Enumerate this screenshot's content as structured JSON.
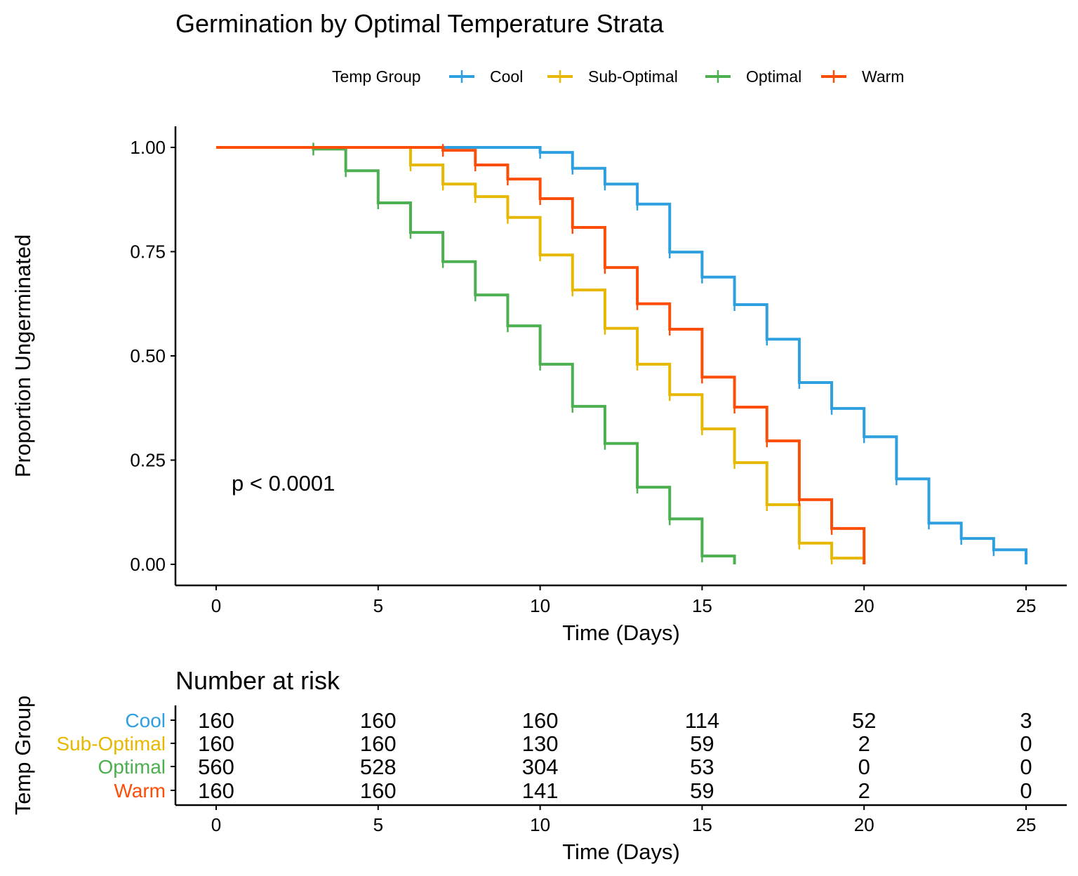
{
  "chart_data": {
    "type": "line",
    "subtype": "kaplan-meier step",
    "title": "Germination by Optimal Temperature Strata",
    "xlabel": "Time (Days)",
    "ylabel": "Proportion Ungerminated",
    "xlim": [
      0,
      25
    ],
    "ylim": [
      0,
      1
    ],
    "xticks": [
      "0",
      "5",
      "10",
      "15",
      "20",
      "25"
    ],
    "yticks": [
      "0.00",
      "0.25",
      "0.50",
      "0.75",
      "1.00"
    ],
    "grid": false,
    "legend": {
      "title": "Temp Group",
      "placement": "top"
    },
    "annotation": "p < 0.0001",
    "series": [
      {
        "name": "Cool",
        "color": "#2E9FDF",
        "x": [
          0,
          10,
          11,
          12,
          13,
          14,
          15,
          16,
          17,
          18,
          19,
          20,
          21,
          22,
          23,
          24,
          25
        ],
        "y": [
          1.0,
          0.988,
          0.95,
          0.912,
          0.864,
          0.749,
          0.689,
          0.623,
          0.54,
          0.436,
          0.374,
          0.306,
          0.205,
          0.099,
          0.062,
          0.035,
          0.0
        ]
      },
      {
        "name": "Sub-Optimal",
        "color": "#E7B800",
        "x": [
          0,
          6,
          7,
          8,
          9,
          10,
          11,
          12,
          13,
          14,
          15,
          16,
          17,
          18,
          19,
          20
        ],
        "y": [
          1.0,
          0.958,
          0.912,
          0.882,
          0.832,
          0.742,
          0.658,
          0.566,
          0.48,
          0.407,
          0.325,
          0.244,
          0.143,
          0.051,
          0.015,
          0.0
        ]
      },
      {
        "name": "Optimal",
        "color": "#4CAF50",
        "x": [
          0,
          3,
          4,
          5,
          6,
          7,
          8,
          9,
          10,
          11,
          12,
          13,
          14,
          15,
          16
        ],
        "y": [
          1.0,
          0.996,
          0.944,
          0.867,
          0.796,
          0.726,
          0.646,
          0.572,
          0.48,
          0.379,
          0.29,
          0.185,
          0.109,
          0.02,
          0.0
        ]
      },
      {
        "name": "Warm",
        "color": "#FC4E07",
        "x": [
          0,
          7,
          8,
          9,
          10,
          11,
          12,
          13,
          14,
          15,
          16,
          17,
          18,
          19,
          20
        ],
        "y": [
          1.0,
          0.993,
          0.958,
          0.924,
          0.877,
          0.808,
          0.712,
          0.625,
          0.564,
          0.449,
          0.377,
          0.296,
          0.155,
          0.086,
          0.0
        ]
      }
    ],
    "risk_table": {
      "title": "Number at risk",
      "ylabel": "Temp Group",
      "xlabel": "Time (Days)",
      "times": [
        "0",
        "5",
        "10",
        "15",
        "20",
        "25"
      ],
      "rows": [
        {
          "name": "Cool",
          "color": "#2E9FDF",
          "counts": [
            "160",
            "160",
            "160",
            "114",
            "52",
            "3"
          ]
        },
        {
          "name": "Sub-Optimal",
          "color": "#E7B800",
          "counts": [
            "160",
            "160",
            "130",
            "59",
            "2",
            "0"
          ]
        },
        {
          "name": "Optimal",
          "color": "#4CAF50",
          "counts": [
            "560",
            "528",
            "304",
            "53",
            "0",
            "0"
          ]
        },
        {
          "name": "Warm",
          "color": "#FC4E07",
          "counts": [
            "160",
            "160",
            "141",
            "59",
            "2",
            "0"
          ]
        }
      ]
    }
  }
}
